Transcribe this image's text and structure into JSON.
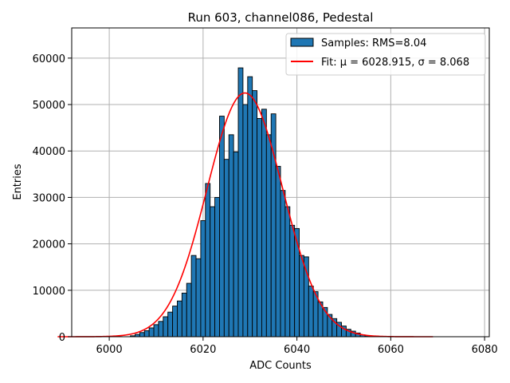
{
  "chart_data": {
    "type": "bar",
    "title": "Run 603, channel086, Pedestal",
    "xlabel": "ADC Counts",
    "ylabel": "Entries",
    "xlim": [
      5992,
      6081
    ],
    "ylim": [
      0,
      66500
    ],
    "xticks": [
      6000,
      6020,
      6040,
      6060,
      6080
    ],
    "yticks": [
      0,
      10000,
      20000,
      30000,
      40000,
      50000,
      60000
    ],
    "grid": true,
    "legend_position": "top-right",
    "bar_color": "#1f77b4",
    "fit_color": "#ff0000",
    "histogram": {
      "name": "Samples: RMS=8.04",
      "bin_width": 1,
      "bins": [
        6005,
        6006,
        6007,
        6008,
        6009,
        6010,
        6011,
        6012,
        6013,
        6014,
        6015,
        6016,
        6017,
        6018,
        6019,
        6020,
        6021,
        6022,
        6023,
        6024,
        6025,
        6026,
        6027,
        6028,
        6029,
        6030,
        6031,
        6032,
        6033,
        6034,
        6035,
        6036,
        6037,
        6038,
        6039,
        6040,
        6041,
        6042,
        6043,
        6044,
        6045,
        6046,
        6047,
        6048,
        6049,
        6050,
        6051,
        6052,
        6053,
        6054,
        6055
      ],
      "values": [
        200,
        500,
        900,
        1300,
        1900,
        2600,
        3300,
        4300,
        5300,
        6600,
        7700,
        9400,
        11500,
        17500,
        16800,
        25000,
        33000,
        28000,
        30000,
        47500,
        38200,
        43500,
        39800,
        57900,
        50000,
        56000,
        53000,
        47000,
        49000,
        43500,
        48000,
        36700,
        31500,
        28000,
        24000,
        23300,
        17500,
        17200,
        10900,
        9700,
        7500,
        6300,
        4800,
        3900,
        3100,
        2300,
        1600,
        1200,
        800,
        400,
        200
      ]
    },
    "fit": {
      "name": "Fit: μ = 6028.915, σ = 8.068",
      "mu": 6028.915,
      "sigma": 8.068,
      "amplitude": 52500,
      "x_range": [
        5989,
        6069
      ]
    }
  }
}
